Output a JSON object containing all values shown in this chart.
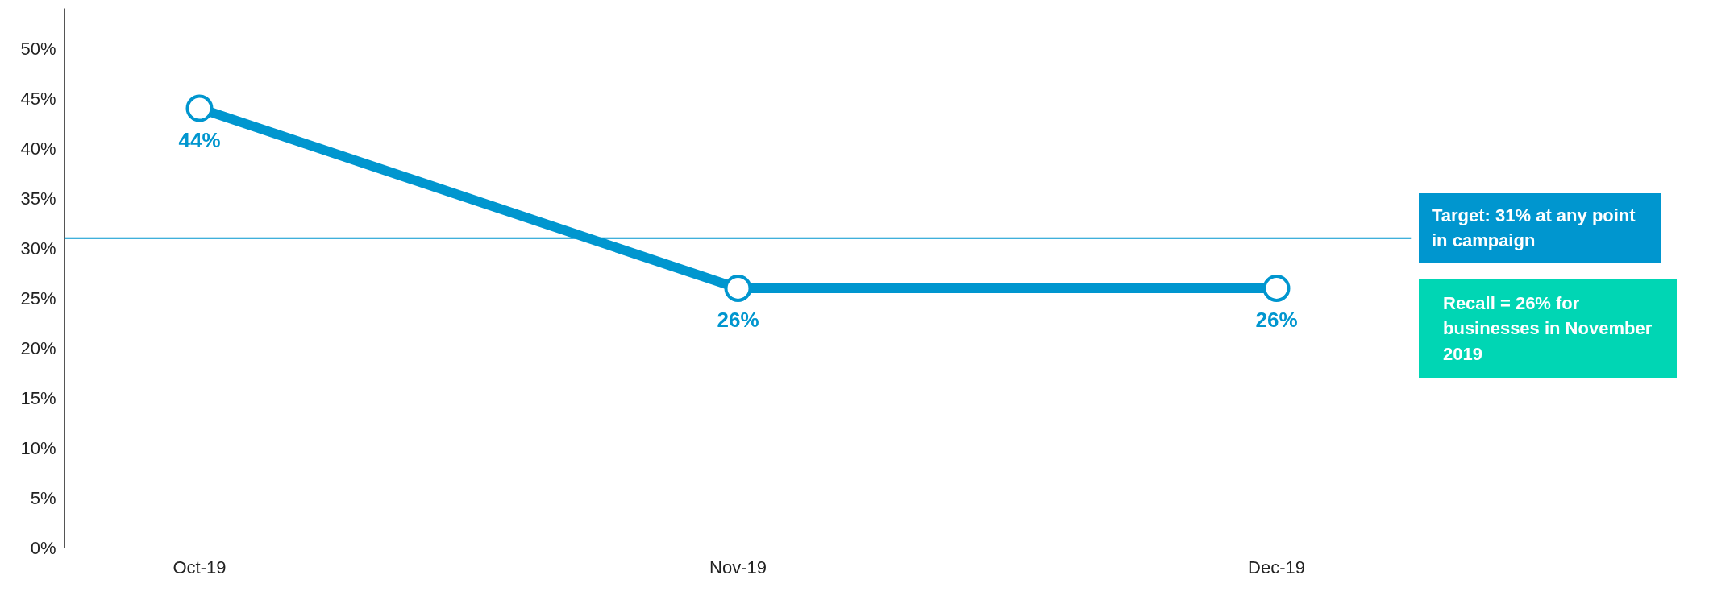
{
  "chart_data": {
    "type": "line",
    "categories": [
      "Oct-19",
      "Nov-19",
      "Dec-19"
    ],
    "series": [
      {
        "color": "#0096cf",
        "values": [
          44,
          26,
          26
        ],
        "value_labels": [
          "44%",
          "26%",
          "26%"
        ]
      }
    ],
    "marker": "circle",
    "line_style": "solid",
    "grid": false,
    "ylim": [
      0,
      54
    ],
    "yticks": [
      {
        "value": 0,
        "label": "0%"
      },
      {
        "value": 5,
        "label": "5%"
      },
      {
        "value": 10,
        "label": "10%"
      },
      {
        "value": 15,
        "label": "15%"
      },
      {
        "value": 20,
        "label": "20%"
      },
      {
        "value": 25,
        "label": "25%"
      },
      {
        "value": 30,
        "label": "30%"
      },
      {
        "value": 35,
        "label": "35%"
      },
      {
        "value": 40,
        "label": "40%"
      },
      {
        "value": 45,
        "label": "45%"
      },
      {
        "value": 50,
        "label": "50%"
      }
    ],
    "ref_lines": [
      {
        "axis": "y",
        "value": 31,
        "label": "Target: 31% at any point in campaign",
        "color": "#0096cf",
        "line_style": "solid"
      }
    ],
    "annotations": [
      "Recall = 26% for businesses in November 2019"
    ]
  }
}
